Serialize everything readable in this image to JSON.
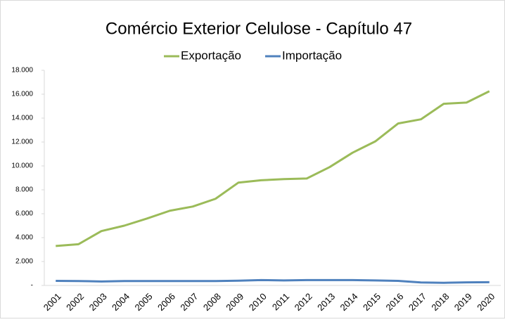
{
  "chart_data": {
    "type": "line",
    "title": "Comércio Exterior Celulose - Capítulo 47",
    "categories": [
      "2001",
      "2002",
      "2003",
      "2004",
      "2005",
      "2006",
      "2007",
      "2008",
      "2009",
      "2010",
      "2011",
      "2012",
      "2013",
      "2014",
      "2015",
      "2016",
      "2017",
      "2018",
      "2019",
      "2020"
    ],
    "series": [
      {
        "name": "Exportação",
        "color": "#9bbb59",
        "values": [
          3300,
          3450,
          4550,
          5000,
          5600,
          6250,
          6600,
          7250,
          8600,
          8800,
          8900,
          8950,
          9900,
          11100,
          12050,
          13550,
          13900,
          15200,
          15300,
          16250
        ]
      },
      {
        "name": "Importação",
        "color": "#4f81bd",
        "values": [
          380,
          370,
          330,
          370,
          370,
          370,
          370,
          370,
          400,
          450,
          420,
          450,
          450,
          450,
          420,
          380,
          250,
          220,
          260,
          270
        ]
      }
    ],
    "ylim": [
      0,
      18000
    ],
    "yticks": [
      {
        "value": 0,
        "label": "-"
      },
      {
        "value": 2000,
        "label": "2.000"
      },
      {
        "value": 4000,
        "label": "4.000"
      },
      {
        "value": 6000,
        "label": "6.000"
      },
      {
        "value": 8000,
        "label": "8.000"
      },
      {
        "value": 10000,
        "label": "10.000"
      },
      {
        "value": 12000,
        "label": "12.000"
      },
      {
        "value": 14000,
        "label": "14.000"
      },
      {
        "value": 16000,
        "label": "16.000"
      },
      {
        "value": 18000,
        "label": "18.000"
      }
    ],
    "legend": "top",
    "grid": false
  }
}
